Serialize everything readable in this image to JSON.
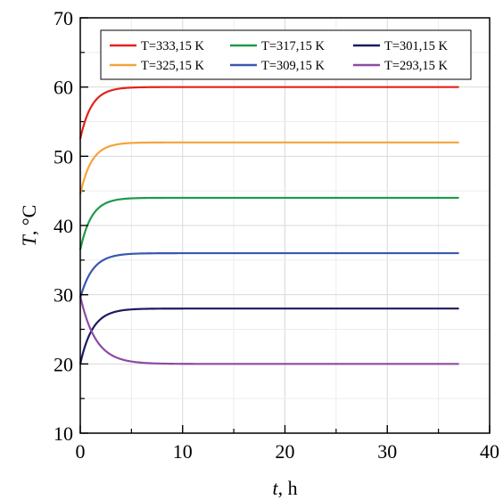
{
  "chart_data": {
    "type": "line",
    "title": "",
    "xlabel": {
      "var": "t",
      "unit": ", h"
    },
    "ylabel": {
      "var": "T",
      "unit": ", °C"
    },
    "xlim": [
      0,
      40
    ],
    "ylim": [
      10,
      70
    ],
    "xticks": [
      0,
      10,
      20,
      30,
      40
    ],
    "yticks": [
      10,
      20,
      30,
      40,
      50,
      60,
      70
    ],
    "grid": true,
    "legend_position": "top",
    "series": [
      {
        "name": "T=333,15 K",
        "color": "#e3231c",
        "start": 52.5,
        "final": 60,
        "tau": 1.1,
        "x_end": 37
      },
      {
        "name": "T=325,15 K",
        "color": "#f5a33b",
        "start": 44.5,
        "final": 52,
        "tau": 1.1,
        "x_end": 37
      },
      {
        "name": "T=317,15 K",
        "color": "#1f9a4a",
        "start": 36.5,
        "final": 44,
        "tau": 1.1,
        "x_end": 37
      },
      {
        "name": "T=309,15 K",
        "color": "#3a58b0",
        "start": 29.5,
        "final": 36,
        "tau": 1.2,
        "x_end": 37
      },
      {
        "name": "T=301,15 K",
        "color": "#1b1a60",
        "start": 20.0,
        "final": 28,
        "tau": 1.2,
        "x_end": 37
      },
      {
        "name": "T=293,15 K",
        "color": "#8e4aa3",
        "start": 29.8,
        "final": 20,
        "tau": 1.5,
        "x_end": 37
      }
    ]
  }
}
